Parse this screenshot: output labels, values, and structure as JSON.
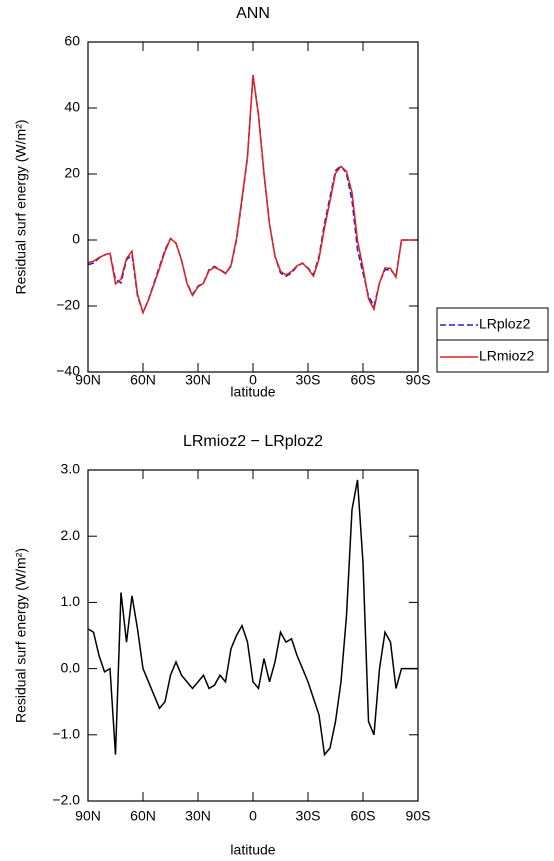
{
  "chart_data": [
    {
      "type": "line",
      "title": "ANN",
      "xlabel": "latitude",
      "ylabel": "Residual surf energy (W/m²)",
      "x": [
        90,
        87,
        84,
        81,
        78,
        75,
        72,
        69,
        66,
        63,
        60,
        57,
        54,
        51,
        48,
        45,
        42,
        39,
        36,
        33,
        30,
        27,
        24,
        21,
        18,
        15,
        12,
        9,
        6,
        3,
        0,
        -3,
        -6,
        -9,
        -12,
        -15,
        -18,
        -21,
        -24,
        -27,
        -30,
        -33,
        -36,
        -39,
        -42,
        -45,
        -48,
        -51,
        -54,
        -57,
        -60,
        -63,
        -66,
        -69,
        -72,
        -75,
        -78,
        -81,
        -84,
        -87,
        -90
      ],
      "series": [
        {
          "name": "LRploz2",
          "color": "#2020d0",
          "dash": true,
          "values": [
            -7.5,
            -7,
            -5.5,
            -4.5,
            -4,
            -12,
            -13,
            -6,
            -4.5,
            -17,
            -22,
            -18,
            -13,
            -8,
            -3,
            0.5,
            -1,
            -6,
            -13,
            -16.5,
            -14,
            -13,
            -9,
            -8,
            -9,
            -10,
            -8,
            0,
            12,
            25,
            50,
            38,
            20,
            5,
            -5,
            -10,
            -11,
            -10,
            -8,
            -7,
            -8.5,
            -10.5,
            -5,
            5,
            13,
            21,
            22.5,
            20,
            12,
            -3,
            -10,
            -17,
            -20,
            -13,
            -9,
            -9,
            -11,
            0,
            0,
            0,
            0
          ]
        },
        {
          "name": "LRmioz2",
          "color": "#e02020",
          "dash": false,
          "values": [
            -6.9,
            -6.45,
            -5.3,
            -4.55,
            -4,
            -13.3,
            -11.85,
            -5.6,
            -3.4,
            -16.4,
            -22,
            -18.2,
            -13.4,
            -8.6,
            -3.5,
            0.4,
            -0.9,
            -6.1,
            -13.2,
            -16.8,
            -14.2,
            -13.1,
            -9.3,
            -8.25,
            -9.1,
            -10.2,
            -7.7,
            0.5,
            12.65,
            25.4,
            49.8,
            37.7,
            20.15,
            4.8,
            -4.9,
            -9.45,
            -10.6,
            -9.55,
            -7.8,
            -7,
            -8.7,
            -10.95,
            -5.7,
            3.7,
            11.8,
            20.2,
            22.3,
            20.8,
            14.4,
            -0.15,
            -8.4,
            -17.8,
            -21,
            -13,
            -8.45,
            -8.6,
            -11.3,
            0,
            0,
            0,
            0
          ]
        }
      ],
      "xlim": [
        90,
        -90
      ],
      "xticks": [
        {
          "value": 90,
          "label": "90N"
        },
        {
          "value": 60,
          "label": "60N"
        },
        {
          "value": 30,
          "label": "30N"
        },
        0,
        {
          "value": -30,
          "label": "30S"
        },
        {
          "value": -60,
          "label": "60S"
        },
        {
          "value": -90,
          "label": "90S"
        }
      ],
      "ylim": [
        -40,
        60
      ],
      "yticks": [
        {
          "value": -40,
          "label": "−40"
        },
        {
          "value": -20,
          "label": "−20"
        },
        0,
        20,
        40,
        60
      ],
      "legend": "right"
    },
    {
      "type": "line",
      "title": "LRmioz2 − LRploz2",
      "xlabel": "latitude",
      "ylabel": "Residual surf energy (W/m²)",
      "x": [
        90,
        87,
        84,
        81,
        78,
        75,
        72,
        69,
        66,
        63,
        60,
        57,
        54,
        51,
        48,
        45,
        42,
        39,
        36,
        33,
        30,
        27,
        24,
        21,
        18,
        15,
        12,
        9,
        6,
        3,
        0,
        -3,
        -6,
        -9,
        -12,
        -15,
        -18,
        -21,
        -24,
        -27,
        -30,
        -33,
        -36,
        -39,
        -42,
        -45,
        -48,
        -51,
        -54,
        -57,
        -60,
        -63,
        -66,
        -69,
        -72,
        -75,
        -78,
        -81,
        -84,
        -87,
        -90
      ],
      "series": [
        {
          "color": "#000000",
          "values": [
            0.6,
            0.55,
            0.2,
            -0.05,
            0,
            -1.3,
            1.15,
            0.4,
            1.1,
            0.6,
            0,
            -0.2,
            -0.4,
            -0.6,
            -0.5,
            -0.1,
            0.1,
            -0.1,
            -0.2,
            -0.3,
            -0.2,
            -0.1,
            -0.3,
            -0.25,
            -0.1,
            -0.2,
            0.3,
            0.5,
            0.65,
            0.4,
            -0.2,
            -0.3,
            0.15,
            -0.2,
            0.1,
            0.55,
            0.4,
            0.45,
            0.2,
            0,
            -0.2,
            -0.45,
            -0.7,
            -1.3,
            -1.2,
            -0.8,
            -0.2,
            0.8,
            2.4,
            2.85,
            1.6,
            -0.8,
            -1,
            0,
            0.55,
            0.4,
            -0.3,
            0,
            0,
            0,
            0
          ]
        }
      ],
      "xlim": [
        90,
        -90
      ],
      "xticks": [
        {
          "value": 90,
          "label": "90N"
        },
        {
          "value": 60,
          "label": "60N"
        },
        {
          "value": 30,
          "label": "30N"
        },
        0,
        {
          "value": -30,
          "label": "30S"
        },
        {
          "value": -60,
          "label": "60S"
        },
        {
          "value": -90,
          "label": "90S"
        }
      ],
      "ylim": [
        -2,
        3
      ],
      "yticks": [
        {
          "value": -2,
          "label": "−2.0"
        },
        {
          "value": -1,
          "label": "−1.0"
        },
        {
          "value": 0,
          "label": "0.0"
        },
        {
          "value": 1,
          "label": "1.0"
        },
        {
          "value": 2,
          "label": "2.0"
        },
        {
          "value": 3,
          "label": "3.0"
        }
      ]
    }
  ]
}
